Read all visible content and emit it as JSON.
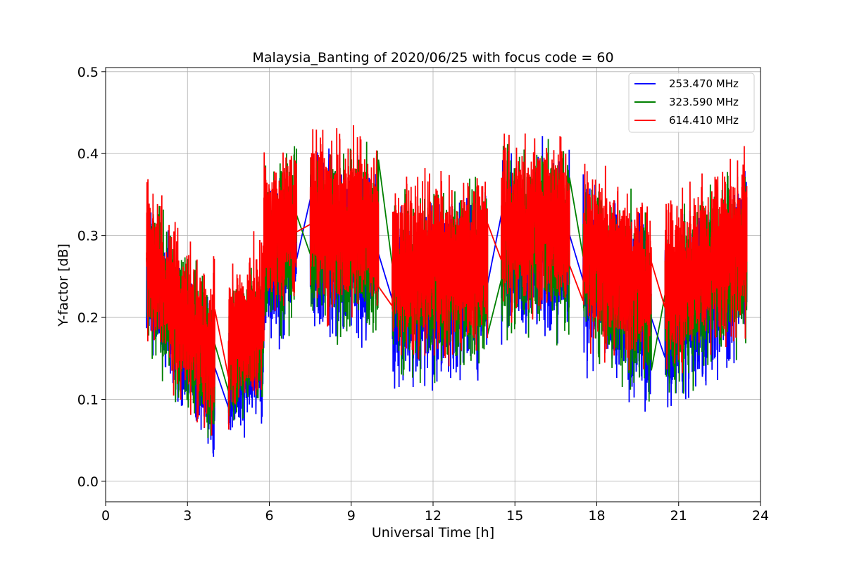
{
  "chart_data": {
    "type": "line",
    "title": "Malaysia_Banting of 2020/06/25 with focus code = 60",
    "xlabel": "Universal Time [h]",
    "ylabel": "Y-factor [dB]",
    "xlim": [
      0,
      24
    ],
    "ylim": [
      -0.025,
      0.505
    ],
    "xticks": [
      0,
      3,
      6,
      9,
      12,
      15,
      18,
      21,
      24
    ],
    "yticks": [
      0.0,
      0.1,
      0.2,
      0.3,
      0.4,
      0.5
    ],
    "ytick_labels": [
      "0.0",
      "0.1",
      "0.2",
      "0.3",
      "0.4",
      "0.5"
    ],
    "grid": true,
    "legend_position": "top-right",
    "series": [
      {
        "name": "253.470 MHz",
        "color": "#0000ff",
        "segments": [
          {
            "x0": 1.5,
            "x1": 2.5,
            "center0": 0.26,
            "center1": 0.19,
            "amplitude": 0.085
          },
          {
            "x0": 2.5,
            "x1": 4.0,
            "center0": 0.19,
            "center1": 0.12,
            "amplitude": 0.085
          },
          {
            "x0": 4.5,
            "x1": 5.8,
            "center0": 0.13,
            "center1": 0.17,
            "amplitude": 0.08
          },
          {
            "x0": 5.8,
            "x1": 7.0,
            "center0": 0.25,
            "center1": 0.3,
            "amplitude": 0.09
          },
          {
            "x0": 7.5,
            "x1": 10.0,
            "center0": 0.29,
            "center1": 0.28,
            "amplitude": 0.1
          },
          {
            "x0": 10.5,
            "x1": 14.0,
            "center0": 0.22,
            "center1": 0.24,
            "amplitude": 0.1
          },
          {
            "x0": 14.5,
            "x1": 17.0,
            "center0": 0.28,
            "center1": 0.29,
            "amplitude": 0.1
          },
          {
            "x0": 17.5,
            "x1": 20.0,
            "center0": 0.26,
            "center1": 0.2,
            "amplitude": 0.1
          },
          {
            "x0": 20.5,
            "x1": 23.5,
            "center0": 0.19,
            "center1": 0.27,
            "amplitude": 0.1
          }
        ]
      },
      {
        "name": "323.590 MHz",
        "color": "#008000",
        "segments": [
          {
            "x0": 1.5,
            "x1": 2.5,
            "center0": 0.27,
            "center1": 0.2,
            "amplitude": 0.085
          },
          {
            "x0": 2.5,
            "x1": 4.0,
            "center0": 0.2,
            "center1": 0.13,
            "amplitude": 0.085
          },
          {
            "x0": 4.5,
            "x1": 5.8,
            "center0": 0.15,
            "center1": 0.19,
            "amplitude": 0.08
          },
          {
            "x0": 5.8,
            "x1": 7.0,
            "center0": 0.27,
            "center1": 0.31,
            "amplitude": 0.09
          },
          {
            "x0": 7.5,
            "x1": 10.0,
            "center0": 0.3,
            "center1": 0.29,
            "amplitude": 0.1
          },
          {
            "x0": 10.5,
            "x1": 14.0,
            "center0": 0.24,
            "center1": 0.25,
            "amplitude": 0.1
          },
          {
            "x0": 14.5,
            "x1": 17.0,
            "center0": 0.29,
            "center1": 0.3,
            "amplitude": 0.1
          },
          {
            "x0": 17.5,
            "x1": 20.0,
            "center0": 0.27,
            "center1": 0.21,
            "amplitude": 0.1
          },
          {
            "x0": 20.5,
            "x1": 23.5,
            "center0": 0.21,
            "center1": 0.28,
            "amplitude": 0.1
          }
        ]
      },
      {
        "name": "614.410 MHz",
        "color": "#ff0000",
        "segments": [
          {
            "x0": 1.5,
            "x1": 2.5,
            "center0": 0.28,
            "center1": 0.21,
            "amplitude": 0.09
          },
          {
            "x0": 2.5,
            "x1": 4.0,
            "center0": 0.21,
            "center1": 0.15,
            "amplitude": 0.09
          },
          {
            "x0": 4.5,
            "x1": 5.8,
            "center0": 0.17,
            "center1": 0.21,
            "amplitude": 0.085
          },
          {
            "x0": 5.8,
            "x1": 7.0,
            "center0": 0.29,
            "center1": 0.33,
            "amplitude": 0.09
          },
          {
            "x0": 7.5,
            "x1": 10.0,
            "center0": 0.32,
            "center1": 0.31,
            "amplitude": 0.1
          },
          {
            "x0": 10.5,
            "x1": 14.0,
            "center0": 0.26,
            "center1": 0.27,
            "amplitude": 0.1
          },
          {
            "x0": 14.5,
            "x1": 17.0,
            "center0": 0.31,
            "center1": 0.32,
            "amplitude": 0.1
          },
          {
            "x0": 17.5,
            "x1": 20.0,
            "center0": 0.29,
            "center1": 0.23,
            "amplitude": 0.1
          },
          {
            "x0": 20.5,
            "x1": 23.5,
            "center0": 0.23,
            "center1": 0.3,
            "amplitude": 0.1
          }
        ]
      }
    ]
  }
}
